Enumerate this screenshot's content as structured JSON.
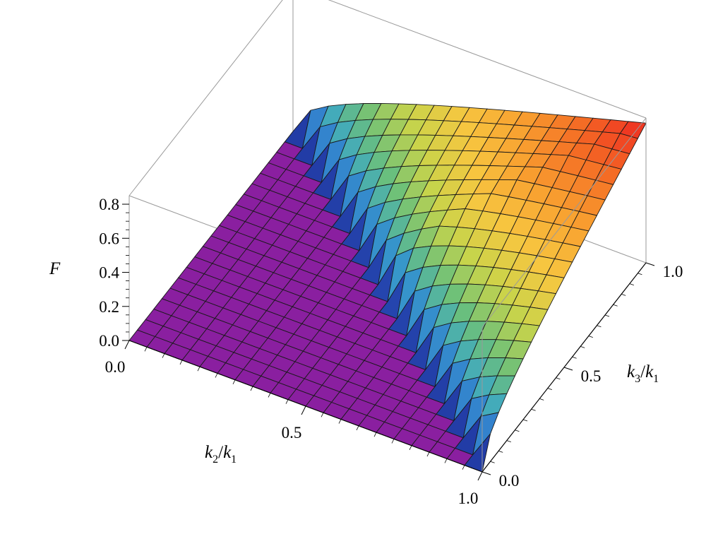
{
  "chart_data": {
    "type": "surface3d",
    "title": "",
    "xlabel": {
      "base": "k",
      "sub": "2",
      "slash": "/",
      "base2": "k",
      "sub2": "1"
    },
    "ylabel": {
      "base": "k",
      "sub": "3",
      "slash": "/",
      "base2": "k",
      "sub2": "1"
    },
    "zlabel": "F",
    "x_range": [
      0.0,
      1.0
    ],
    "y_range": [
      0.0,
      1.0
    ],
    "z_range": [
      0.0,
      0.85
    ],
    "x_ticks": [
      "0.0",
      "0.5",
      "1.0"
    ],
    "y_ticks": [
      "0.0",
      "0.5",
      "1.0"
    ],
    "z_ticks": [
      "0.0",
      "0.2",
      "0.4",
      "0.6",
      "0.8"
    ],
    "domain_note": "surface is zero for k2/k1 + k3/k1 < 1",
    "surface_max": 0.82,
    "colormap": [
      "#1a1a8a",
      "#2f6fd0",
      "#3aa6c8",
      "#6cc07a",
      "#c9d44a",
      "#f7c640",
      "#f8a030",
      "#f46a24",
      "#ee2a22"
    ],
    "flat_color": "#8a1fa0",
    "mesh_divisions": 20
  }
}
